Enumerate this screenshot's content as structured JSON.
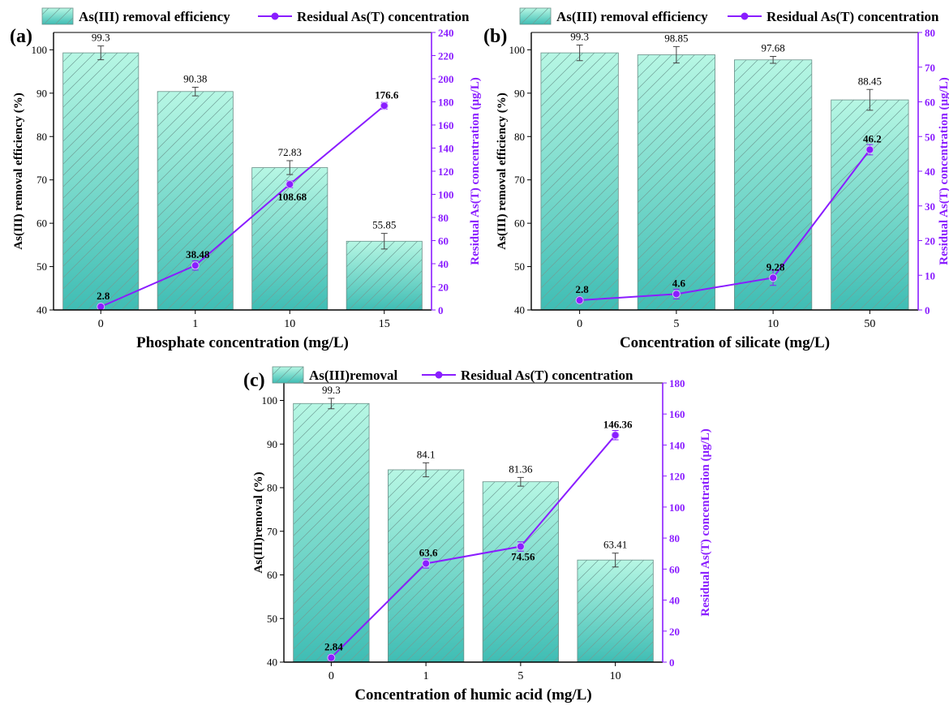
{
  "colors": {
    "bar_top": "#b7f7e4",
    "bar_bottom": "#3fbdb4",
    "bar_stroke": "#6a8f88",
    "hatch": "#6f9f97",
    "line": "#8a1dff",
    "axis_right": "#8a1dff",
    "axis_left": "#000000"
  },
  "chart_data": [
    {
      "panel": "(a)",
      "type": "bar+line",
      "legend": [
        "As(III) removal efficiency",
        "Residual As(T) concentration"
      ],
      "xlabel": "Phosphate concentration (mg/L)",
      "ylabel": "As(III) removal efficiency (%)",
      "y2label": "Residual As(T) concentration (μg/L)",
      "categories": [
        "0",
        "1",
        "10",
        "15"
      ],
      "ylim": [
        40,
        104
      ],
      "yticks": [
        40,
        50,
        60,
        70,
        80,
        90,
        100
      ],
      "y2lim": [
        0,
        240
      ],
      "y2ticks": [
        0,
        20,
        40,
        60,
        80,
        100,
        120,
        140,
        160,
        180,
        200,
        220,
        240
      ],
      "series": [
        {
          "name": "As(III) removal efficiency",
          "kind": "bar",
          "values": [
            99.3,
            90.38,
            72.83,
            55.85
          ],
          "errors": [
            1.6,
            1.0,
            1.6,
            1.8
          ],
          "labels": [
            "99.3",
            "90.38",
            "72.83",
            "55.85"
          ]
        },
        {
          "name": "Residual As(T) concentration",
          "kind": "line",
          "axis": "right",
          "values": [
            2.8,
            38.48,
            108.68,
            176.6
          ],
          "errors": [
            2,
            4,
            3,
            3
          ],
          "labels": [
            "2.8",
            "38.48",
            "108.68",
            "176.6"
          ]
        }
      ]
    },
    {
      "panel": "(b)",
      "type": "bar+line",
      "legend": [
        "As(III) removal efficiency",
        "Residual As(T) concentration"
      ],
      "xlabel": "Concentration of silicate (mg/L)",
      "ylabel": "As(III) removal efficiency (%)",
      "y2label": "Residual As(T) concentration (μg/L)",
      "categories": [
        "0",
        "5",
        "10",
        "50"
      ],
      "ylim": [
        40,
        104
      ],
      "yticks": [
        40,
        50,
        60,
        70,
        80,
        90,
        100
      ],
      "y2lim": [
        0,
        80
      ],
      "y2ticks": [
        0,
        10,
        20,
        30,
        40,
        50,
        60,
        70,
        80
      ],
      "series": [
        {
          "name": "As(III) removal efficiency",
          "kind": "bar",
          "values": [
            99.3,
            98.85,
            97.68,
            88.45
          ],
          "errors": [
            1.8,
            1.9,
            0.8,
            2.4
          ],
          "labels": [
            "99.3",
            "98.85",
            "97.68",
            "88.45"
          ]
        },
        {
          "name": "Residual As(T) concentration",
          "kind": "line",
          "axis": "right",
          "values": [
            2.8,
            4.6,
            9.28,
            46.2
          ],
          "errors": [
            0.8,
            1.4,
            2.2,
            1.5
          ],
          "labels": [
            "2.8",
            "4.6",
            "9.28",
            "46.2"
          ]
        }
      ]
    },
    {
      "panel": "(c)",
      "type": "bar+line",
      "legend": [
        "As(III)removal",
        "Residual As(T) concentration"
      ],
      "xlabel": "Concentration of humic acid (mg/L)",
      "ylabel": "As(III)removal (%)",
      "y2label": "Residual As(T) concentration (μg/L)",
      "categories": [
        "0",
        "1",
        "5",
        "10"
      ],
      "ylim": [
        40,
        104
      ],
      "yticks": [
        40,
        50,
        60,
        70,
        80,
        90,
        100
      ],
      "y2lim": [
        0,
        180
      ],
      "y2ticks": [
        0,
        20,
        40,
        60,
        80,
        100,
        120,
        140,
        160,
        180
      ],
      "series": [
        {
          "name": "As(III)removal",
          "kind": "bar",
          "values": [
            99.3,
            84.1,
            81.36,
            63.41
          ],
          "errors": [
            1.2,
            1.6,
            1.0,
            1.6
          ],
          "labels": [
            "99.3",
            "84.1",
            "81.36",
            "63.41"
          ]
        },
        {
          "name": "Residual As(T) concentration",
          "kind": "line",
          "axis": "right",
          "values": [
            2.84,
            63.6,
            74.56,
            146.36
          ],
          "errors": [
            2,
            3,
            3,
            3
          ],
          "labels": [
            "2.84",
            "63.6",
            "74.56",
            "146.36"
          ]
        }
      ]
    }
  ]
}
